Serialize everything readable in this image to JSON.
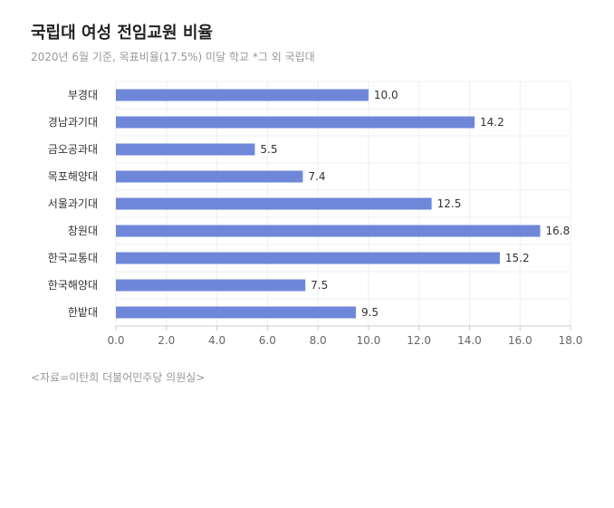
{
  "title": "국립대 여성 전임교원 비율",
  "subtitle": "2020년 6월 기준, 목표비율(17.5%) 미달 학교 *그 외 국립대",
  "source": "<자료=이탄희 더불어민주당 의원실>",
  "colors": {
    "bar": "#6f87d8",
    "grid": "#efefef",
    "axis": "#cccccc",
    "label": "#333333",
    "tick": "#666666"
  },
  "chart_data": {
    "type": "bar",
    "orientation": "horizontal",
    "title": "국립대 여성 전임교원 비율",
    "subtitle": "2020년 6월 기준, 목표비율(17.5%) 미달 학교 *그 외 국립대",
    "categories": [
      "부경대",
      "경남과기대",
      "금오공과대",
      "목포해양대",
      "서울과기대",
      "창원대",
      "한국교통대",
      "한국해양대",
      "한밭대"
    ],
    "values": [
      10.0,
      14.2,
      5.5,
      7.4,
      12.5,
      16.8,
      15.2,
      7.5,
      9.5
    ],
    "value_labels": [
      "10.0",
      "14.2",
      "5.5",
      "7.4",
      "12.5",
      "16.8",
      "15.2",
      "7.5",
      "9.5"
    ],
    "xlim": [
      0,
      18
    ],
    "xticks": [
      "0.0",
      "2.0",
      "4.0",
      "6.0",
      "8.0",
      "10.0",
      "12.0",
      "14.0",
      "16.0",
      "18.0"
    ],
    "grid": true,
    "legend": false
  }
}
